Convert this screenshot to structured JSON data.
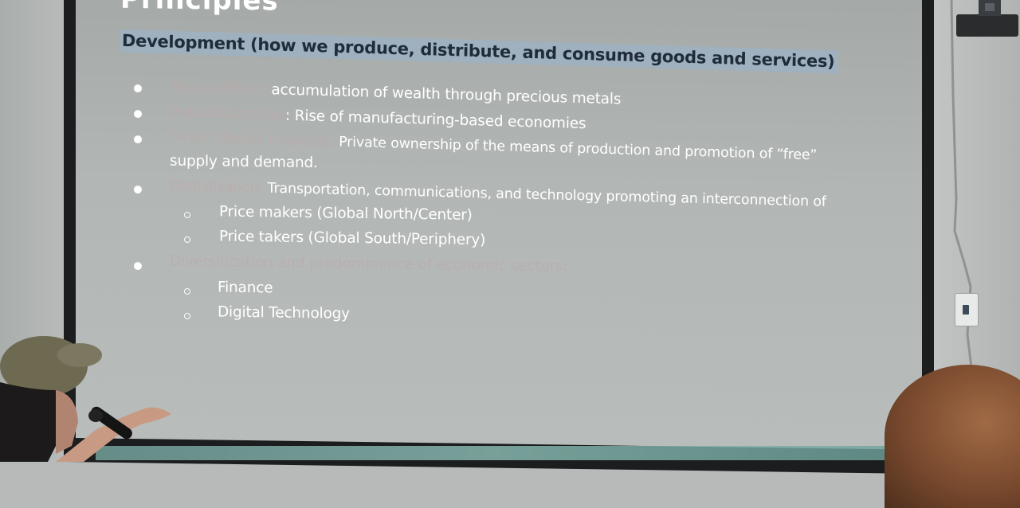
{
  "slide": {
    "title": "Principles",
    "subheading": "Development (how we produce, distribute, and consume goods and services)",
    "items": [
      {
        "term": "Mercantilism:",
        "text": " accumulation of wealth through precious metals"
      },
      {
        "term": "Industrialization",
        "text": ": Rise of manufacturing-based economies"
      },
      {
        "term": "“Free” Market Economy:",
        "text": " Private ownership of the means of production and promotion of “free”",
        "continuation": "supply and demand."
      },
      {
        "term": "Globalization:",
        "text": " Transportation, communications, and technology promoting an interconnection of",
        "subitems": [
          "Price makers (Global North/Center)",
          "Price takers (Global South/Periphery)"
        ]
      },
      {
        "term": "Diversification and predominance of economic sectors:",
        "subitems": [
          "Finance",
          "Digital Technology"
        ]
      }
    ]
  },
  "colors": {
    "slide_background": "#b2b6b4",
    "highlight": "#9fb0be",
    "text": "#ffffff",
    "term_text": "#c3a7ac"
  }
}
